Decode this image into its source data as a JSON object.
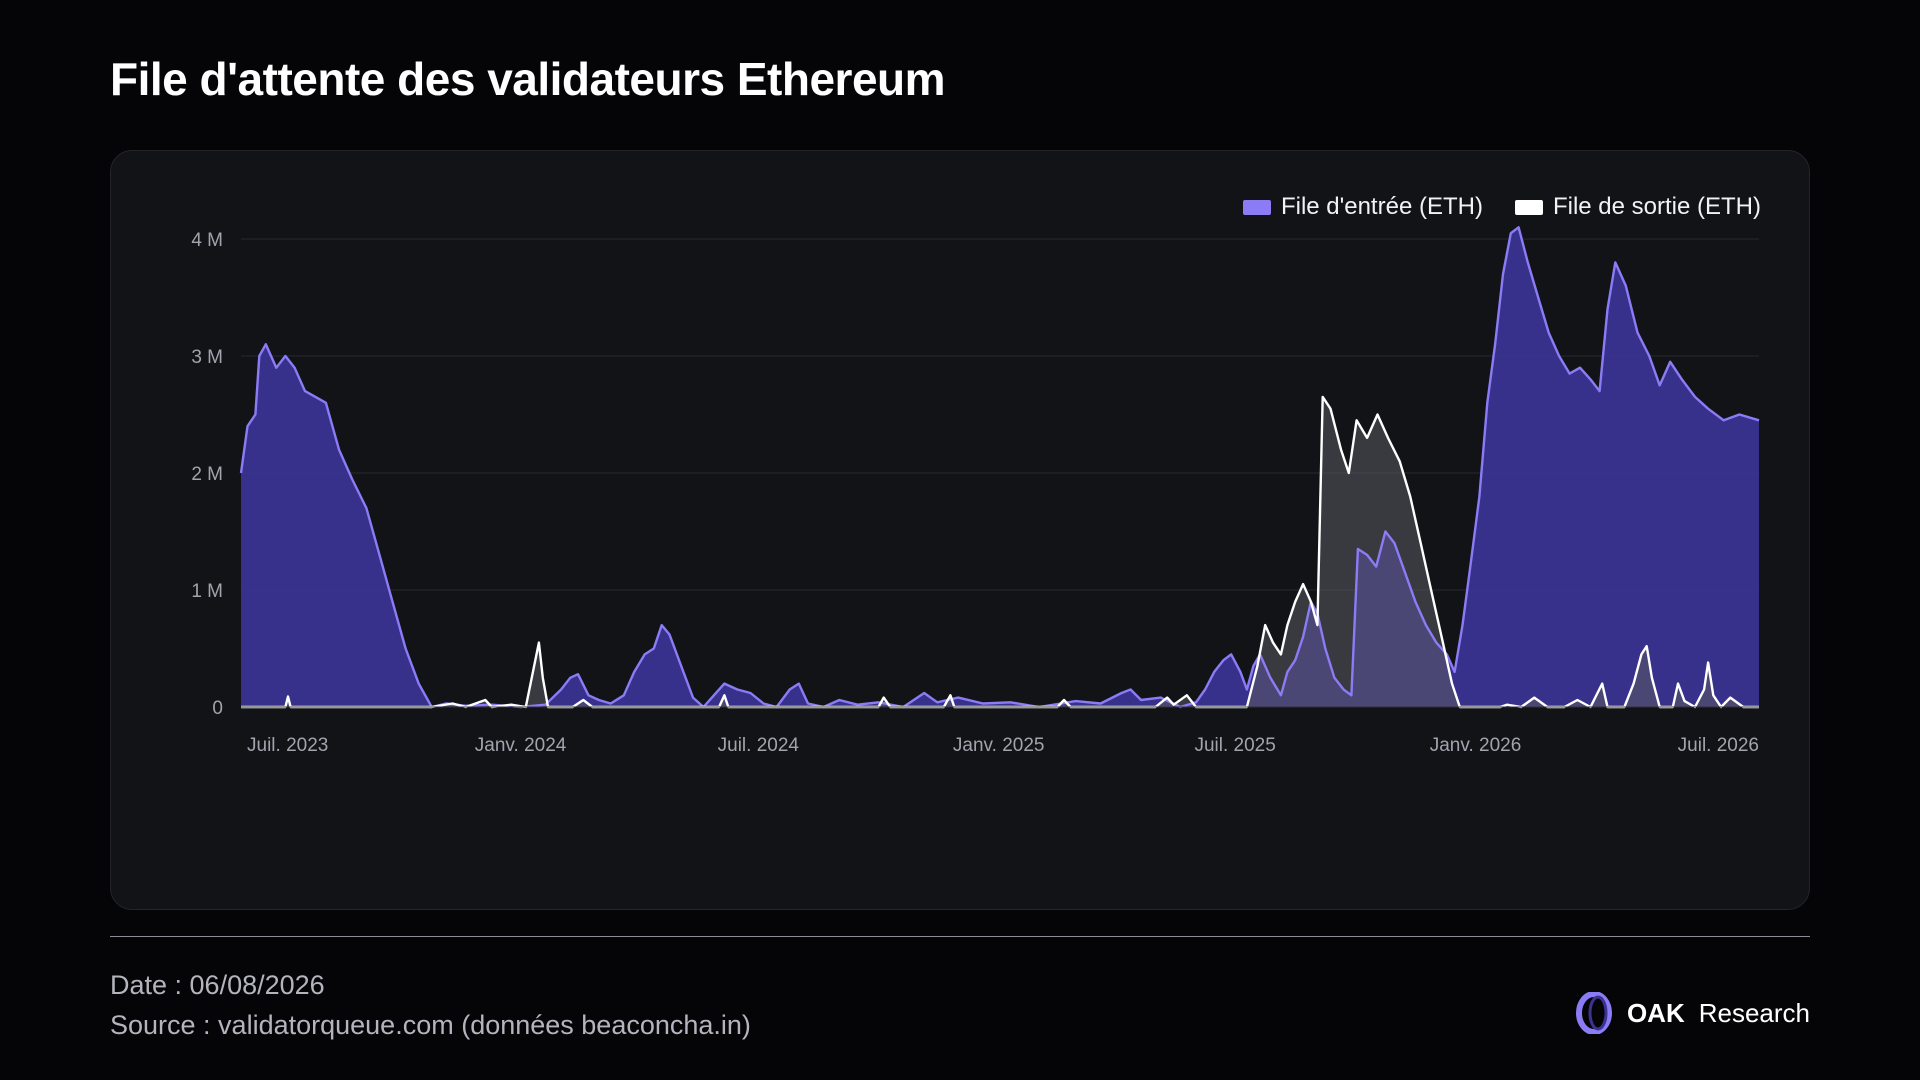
{
  "title": "File d'attente des validateurs Ethereum",
  "footer": {
    "date": "Date : 06/08/2026",
    "source": "Source : validatorqueue.com (données beaconcha.in)"
  },
  "brand": {
    "name": "OAK",
    "suffix": "Research",
    "logo_icon": "oak-ring-icon"
  },
  "colors": {
    "entry_line": "#8b7cf6",
    "entry_fill": "#3b3391",
    "exit_line": "#ffffff",
    "exit_fill": "#5a5a62"
  },
  "chart_data": {
    "type": "area",
    "title": "File d'attente des validateurs Ethereum",
    "xlabel": "",
    "ylabel": "",
    "x_type": "date",
    "xlim": [
      "2023-06-01",
      "2026-08-06"
    ],
    "ylim": [
      0,
      4000000
    ],
    "y_ticks": [
      0,
      1000000,
      2000000,
      3000000,
      4000000
    ],
    "y_tick_labels": [
      "0",
      "1 M",
      "2 M",
      "3 M",
      "4 M"
    ],
    "x_ticks": [
      "2023-07-01",
      "2024-01-01",
      "2024-07-01",
      "2025-01-01",
      "2025-07-01",
      "2026-01-01",
      "2026-07-01"
    ],
    "x_tick_labels": [
      "Juil. 2023",
      "Janv. 2024",
      "Juil. 2024",
      "Janv. 2025",
      "Juil. 2025",
      "Janv. 2026",
      "Juil. 2026"
    ],
    "grid": true,
    "legend_position": "top-right",
    "series": [
      {
        "name": "File d'entrée (ETH)",
        "color": "#8b7cf6",
        "points": [
          [
            "2023-06-01",
            2000000
          ],
          [
            "2023-06-06",
            2400000
          ],
          [
            "2023-06-12",
            2500000
          ],
          [
            "2023-06-15",
            3000000
          ],
          [
            "2023-06-20",
            3100000
          ],
          [
            "2023-06-28",
            2900000
          ],
          [
            "2023-07-05",
            3000000
          ],
          [
            "2023-07-12",
            2900000
          ],
          [
            "2023-07-20",
            2700000
          ],
          [
            "2023-07-28",
            2650000
          ],
          [
            "2023-08-05",
            2600000
          ],
          [
            "2023-08-15",
            2200000
          ],
          [
            "2023-08-25",
            1950000
          ],
          [
            "2023-09-05",
            1700000
          ],
          [
            "2023-09-15",
            1300000
          ],
          [
            "2023-09-25",
            900000
          ],
          [
            "2023-10-05",
            500000
          ],
          [
            "2023-10-15",
            200000
          ],
          [
            "2023-10-25",
            0
          ],
          [
            "2023-11-05",
            30000
          ],
          [
            "2023-11-20",
            10000
          ],
          [
            "2023-12-10",
            20000
          ],
          [
            "2024-01-01",
            0
          ],
          [
            "2024-01-20",
            20000
          ],
          [
            "2024-02-01",
            150000
          ],
          [
            "2024-02-08",
            250000
          ],
          [
            "2024-02-14",
            280000
          ],
          [
            "2024-02-22",
            100000
          ],
          [
            "2024-03-01",
            60000
          ],
          [
            "2024-03-10",
            30000
          ],
          [
            "2024-03-20",
            100000
          ],
          [
            "2024-03-28",
            300000
          ],
          [
            "2024-04-05",
            450000
          ],
          [
            "2024-04-12",
            500000
          ],
          [
            "2024-04-18",
            700000
          ],
          [
            "2024-04-24",
            620000
          ],
          [
            "2024-05-03",
            350000
          ],
          [
            "2024-05-12",
            80000
          ],
          [
            "2024-05-20",
            0
          ],
          [
            "2024-05-28",
            100000
          ],
          [
            "2024-06-05",
            200000
          ],
          [
            "2024-06-15",
            150000
          ],
          [
            "2024-06-25",
            120000
          ],
          [
            "2024-07-05",
            30000
          ],
          [
            "2024-07-15",
            0
          ],
          [
            "2024-07-25",
            150000
          ],
          [
            "2024-08-01",
            200000
          ],
          [
            "2024-08-08",
            30000
          ],
          [
            "2024-08-20",
            0
          ],
          [
            "2024-09-01",
            60000
          ],
          [
            "2024-09-15",
            20000
          ],
          [
            "2024-10-01",
            40000
          ],
          [
            "2024-10-20",
            0
          ],
          [
            "2024-11-05",
            120000
          ],
          [
            "2024-11-15",
            40000
          ],
          [
            "2024-12-01",
            80000
          ],
          [
            "2024-12-20",
            30000
          ],
          [
            "2025-01-10",
            40000
          ],
          [
            "2025-02-01",
            0
          ],
          [
            "2025-03-01",
            50000
          ],
          [
            "2025-03-20",
            30000
          ],
          [
            "2025-04-05",
            120000
          ],
          [
            "2025-04-12",
            150000
          ],
          [
            "2025-04-20",
            60000
          ],
          [
            "2025-05-05",
            80000
          ],
          [
            "2025-05-20",
            0
          ],
          [
            "2025-06-01",
            40000
          ],
          [
            "2025-06-08",
            150000
          ],
          [
            "2025-06-15",
            300000
          ],
          [
            "2025-06-22",
            400000
          ],
          [
            "2025-06-28",
            450000
          ],
          [
            "2025-07-05",
            300000
          ],
          [
            "2025-07-10",
            150000
          ],
          [
            "2025-07-15",
            350000
          ],
          [
            "2025-07-20",
            450000
          ],
          [
            "2025-07-28",
            250000
          ],
          [
            "2025-08-05",
            100000
          ],
          [
            "2025-08-10",
            300000
          ],
          [
            "2025-08-16",
            400000
          ],
          [
            "2025-08-22",
            600000
          ],
          [
            "2025-08-28",
            900000
          ],
          [
            "2025-09-02",
            800000
          ],
          [
            "2025-09-08",
            500000
          ],
          [
            "2025-09-15",
            250000
          ],
          [
            "2025-09-22",
            150000
          ],
          [
            "2025-09-28",
            100000
          ],
          [
            "2025-10-03",
            1350000
          ],
          [
            "2025-10-10",
            1300000
          ],
          [
            "2025-10-17",
            1200000
          ],
          [
            "2025-10-24",
            1500000
          ],
          [
            "2025-10-31",
            1400000
          ],
          [
            "2025-11-08",
            1150000
          ],
          [
            "2025-11-16",
            900000
          ],
          [
            "2025-11-24",
            700000
          ],
          [
            "2025-12-02",
            550000
          ],
          [
            "2025-12-10",
            450000
          ],
          [
            "2025-12-16",
            300000
          ],
          [
            "2025-12-22",
            700000
          ],
          [
            "2025-12-28",
            1200000
          ],
          [
            "2026-01-04",
            1800000
          ],
          [
            "2026-01-10",
            2600000
          ],
          [
            "2026-01-16",
            3100000
          ],
          [
            "2026-01-22",
            3700000
          ],
          [
            "2026-01-28",
            4050000
          ],
          [
            "2026-02-03",
            4100000
          ],
          [
            "2026-02-10",
            3800000
          ],
          [
            "2026-02-18",
            3500000
          ],
          [
            "2026-02-26",
            3200000
          ],
          [
            "2026-03-06",
            3000000
          ],
          [
            "2026-03-14",
            2850000
          ],
          [
            "2026-03-22",
            2900000
          ],
          [
            "2026-03-30",
            2800000
          ],
          [
            "2026-04-06",
            2700000
          ],
          [
            "2026-04-12",
            3400000
          ],
          [
            "2026-04-18",
            3800000
          ],
          [
            "2026-04-26",
            3600000
          ],
          [
            "2026-05-05",
            3200000
          ],
          [
            "2026-05-14",
            3000000
          ],
          [
            "2026-05-22",
            2750000
          ],
          [
            "2026-05-30",
            2950000
          ],
          [
            "2026-06-08",
            2800000
          ],
          [
            "2026-06-18",
            2650000
          ],
          [
            "2026-06-28",
            2550000
          ],
          [
            "2026-07-10",
            2450000
          ],
          [
            "2026-07-22",
            2500000
          ],
          [
            "2026-08-06",
            2450000
          ]
        ]
      },
      {
        "name": "File de sortie (ETH)",
        "color": "#ffffff",
        "points": [
          [
            "2023-06-01",
            0
          ],
          [
            "2023-07-05",
            0
          ],
          [
            "2023-07-07",
            90000
          ],
          [
            "2023-07-09",
            0
          ],
          [
            "2023-10-25",
            0
          ],
          [
            "2023-11-10",
            30000
          ],
          [
            "2023-11-20",
            0
          ],
          [
            "2023-12-05",
            60000
          ],
          [
            "2023-12-10",
            0
          ],
          [
            "2023-12-25",
            20000
          ],
          [
            "2024-01-05",
            0
          ],
          [
            "2024-01-15",
            550000
          ],
          [
            "2024-01-18",
            250000
          ],
          [
            "2024-01-22",
            0
          ],
          [
            "2024-02-10",
            0
          ],
          [
            "2024-02-18",
            60000
          ],
          [
            "2024-02-25",
            0
          ],
          [
            "2024-06-01",
            0
          ],
          [
            "2024-06-05",
            100000
          ],
          [
            "2024-06-08",
            0
          ],
          [
            "2024-10-01",
            0
          ],
          [
            "2024-10-05",
            80000
          ],
          [
            "2024-10-10",
            0
          ],
          [
            "2024-11-20",
            0
          ],
          [
            "2024-11-25",
            100000
          ],
          [
            "2024-11-28",
            0
          ],
          [
            "2025-01-01",
            0
          ],
          [
            "2025-02-15",
            0
          ],
          [
            "2025-02-20",
            60000
          ],
          [
            "2025-02-25",
            0
          ],
          [
            "2025-05-01",
            0
          ],
          [
            "2025-05-10",
            80000
          ],
          [
            "2025-05-15",
            20000
          ],
          [
            "2025-05-25",
            100000
          ],
          [
            "2025-06-01",
            0
          ],
          [
            "2025-07-10",
            0
          ],
          [
            "2025-07-18",
            350000
          ],
          [
            "2025-07-24",
            700000
          ],
          [
            "2025-07-30",
            550000
          ],
          [
            "2025-08-05",
            450000
          ],
          [
            "2025-08-10",
            700000
          ],
          [
            "2025-08-16",
            900000
          ],
          [
            "2025-08-22",
            1050000
          ],
          [
            "2025-08-28",
            900000
          ],
          [
            "2025-09-02",
            700000
          ],
          [
            "2025-09-06",
            2650000
          ],
          [
            "2025-09-12",
            2550000
          ],
          [
            "2025-09-20",
            2200000
          ],
          [
            "2025-09-26",
            2000000
          ],
          [
            "2025-10-02",
            2450000
          ],
          [
            "2025-10-10",
            2300000
          ],
          [
            "2025-10-18",
            2500000
          ],
          [
            "2025-10-26",
            2300000
          ],
          [
            "2025-11-04",
            2100000
          ],
          [
            "2025-11-12",
            1800000
          ],
          [
            "2025-11-20",
            1400000
          ],
          [
            "2025-11-28",
            1000000
          ],
          [
            "2025-12-06",
            600000
          ],
          [
            "2025-12-14",
            200000
          ],
          [
            "2025-12-20",
            0
          ],
          [
            "2026-01-01",
            0
          ],
          [
            "2026-01-20",
            0
          ],
          [
            "2026-01-25",
            20000
          ],
          [
            "2026-02-05",
            0
          ],
          [
            "2026-02-15",
            80000
          ],
          [
            "2026-02-25",
            0
          ],
          [
            "2026-03-10",
            0
          ],
          [
            "2026-03-20",
            60000
          ],
          [
            "2026-03-30",
            0
          ],
          [
            "2026-04-08",
            200000
          ],
          [
            "2026-04-12",
            0
          ],
          [
            "2026-04-25",
            0
          ],
          [
            "2026-05-02",
            200000
          ],
          [
            "2026-05-08",
            450000
          ],
          [
            "2026-05-12",
            520000
          ],
          [
            "2026-05-16",
            250000
          ],
          [
            "2026-05-22",
            0
          ],
          [
            "2026-06-01",
            0
          ],
          [
            "2026-06-05",
            200000
          ],
          [
            "2026-06-10",
            50000
          ],
          [
            "2026-06-18",
            0
          ],
          [
            "2026-06-25",
            150000
          ],
          [
            "2026-06-28",
            380000
          ],
          [
            "2026-07-02",
            100000
          ],
          [
            "2026-07-08",
            0
          ],
          [
            "2026-07-15",
            80000
          ],
          [
            "2026-07-25",
            0
          ],
          [
            "2026-08-06",
            0
          ]
        ]
      }
    ]
  }
}
